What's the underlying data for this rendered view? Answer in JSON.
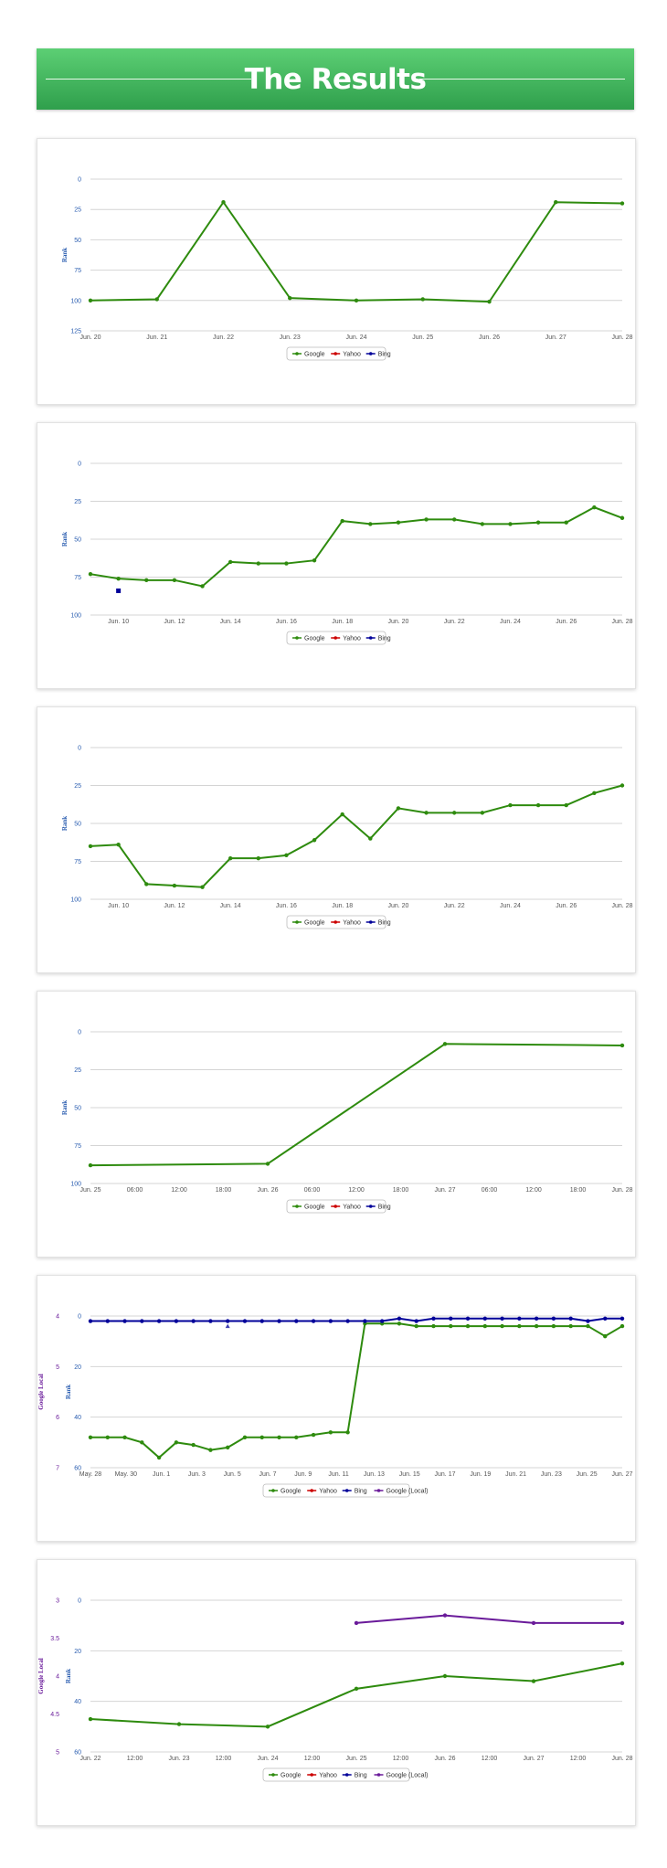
{
  "header": {
    "title": "The Results"
  },
  "colors": {
    "Google": "#2e8b0e",
    "Yahoo": "#cc0000",
    "Bing": "#000099",
    "Google (Local)": "#6a1b9a"
  },
  "chart_data": [
    {
      "type": "line",
      "ylabel": "Rank",
      "ylim": [
        0,
        125
      ],
      "y_reversed": true,
      "yticks": [
        0,
        25,
        50,
        75,
        100,
        125
      ],
      "xticks": [
        "Jun. 20",
        "Jun. 21",
        "Jun. 22",
        "Jun. 23",
        "Jun. 24",
        "Jun. 25",
        "Jun. 26",
        "Jun. 27",
        "Jun. 28"
      ],
      "xrange": [
        0,
        8
      ],
      "series": [
        {
          "name": "Google",
          "x": [
            0,
            1,
            2,
            3,
            4,
            5,
            6,
            7,
            8
          ],
          "y": [
            100,
            99,
            19,
            98,
            100,
            99,
            101,
            19,
            20
          ]
        }
      ],
      "legend": [
        "Google",
        "Yahoo",
        "Bing"
      ],
      "legend_position": "bottom-center"
    },
    {
      "type": "line",
      "ylabel": "Rank",
      "ylim": [
        0,
        100
      ],
      "y_reversed": true,
      "yticks": [
        0,
        25,
        50,
        75,
        100
      ],
      "xticks": [
        "Jun. 10",
        "Jun. 12",
        "Jun. 14",
        "Jun. 16",
        "Jun. 18",
        "Jun. 20",
        "Jun. 22",
        "Jun. 24",
        "Jun. 26",
        "Jun. 28"
      ],
      "xrange": [
        9,
        28
      ],
      "series": [
        {
          "name": "Google",
          "x": [
            9,
            10,
            11,
            12,
            13,
            14,
            15,
            16,
            17,
            18,
            19,
            20,
            21,
            22,
            23,
            24,
            25,
            26,
            27,
            28
          ],
          "y": [
            73,
            76,
            77,
            77,
            81,
            65,
            66,
            66,
            64,
            38,
            40,
            39,
            37,
            37,
            40,
            40,
            39,
            39,
            29,
            36
          ]
        },
        {
          "name": "Bing",
          "x": [
            10
          ],
          "y": [
            84
          ]
        }
      ],
      "legend": [
        "Google",
        "Yahoo",
        "Bing"
      ],
      "legend_position": "bottom-center"
    },
    {
      "type": "line",
      "ylabel": "Rank",
      "ylim": [
        0,
        100
      ],
      "y_reversed": true,
      "yticks": [
        0,
        25,
        50,
        75,
        100
      ],
      "xticks": [
        "Jun. 10",
        "Jun. 12",
        "Jun. 14",
        "Jun. 16",
        "Jun. 18",
        "Jun. 20",
        "Jun. 22",
        "Jun. 24",
        "Jun. 26",
        "Jun. 28"
      ],
      "xrange": [
        9,
        28
      ],
      "series": [
        {
          "name": "Google",
          "x": [
            9,
            10,
            11,
            12,
            13,
            14,
            15,
            16,
            17,
            18,
            19,
            20,
            21,
            22,
            23,
            24,
            25,
            26,
            27,
            28
          ],
          "y": [
            65,
            64,
            90,
            91,
            92,
            73,
            73,
            71,
            61,
            44,
            60,
            40,
            43,
            43,
            43,
            38,
            38,
            38,
            30,
            25
          ]
        }
      ],
      "legend": [
        "Google",
        "Yahoo",
        "Bing"
      ],
      "legend_position": "bottom-center"
    },
    {
      "type": "line",
      "ylabel": "Rank",
      "ylim": [
        0,
        100
      ],
      "y_reversed": true,
      "yticks": [
        0,
        25,
        50,
        75,
        100
      ],
      "xticks": [
        "Jun. 25",
        "06:00",
        "12:00",
        "18:00",
        "Jun. 26",
        "06:00",
        "12:00",
        "18:00",
        "Jun. 27",
        "06:00",
        "12:00",
        "18:00",
        "Jun. 28"
      ],
      "xrange": [
        0,
        12
      ],
      "series": [
        {
          "name": "Google",
          "x": [
            0,
            4,
            8,
            12
          ],
          "y": [
            88,
            87,
            8,
            9
          ]
        }
      ],
      "legend": [
        "Google",
        "Yahoo",
        "Bing"
      ],
      "legend_position": "bottom-center"
    },
    {
      "type": "line",
      "ylabel": "Rank",
      "ylabel2": "Google Local",
      "ylim": [
        0,
        60
      ],
      "y_reversed": true,
      "yticks": [
        0,
        20,
        40,
        60
      ],
      "ylim2": [
        4,
        7
      ],
      "yticks2": [
        4,
        5,
        6,
        7
      ],
      "xticks": [
        "May. 28",
        "May. 30",
        "Jun. 1",
        "Jun. 3",
        "Jun. 5",
        "Jun. 7",
        "Jun. 9",
        "Jun. 11",
        "Jun. 13",
        "Jun. 15",
        "Jun. 17",
        "Jun. 19",
        "Jun. 21",
        "Jun. 23",
        "Jun. 25",
        "Jun. 27"
      ],
      "xrange": [
        0,
        31
      ],
      "series": [
        {
          "name": "Google",
          "x": [
            0,
            1,
            2,
            3,
            4,
            5,
            6,
            7,
            8,
            9,
            10,
            11,
            12,
            13,
            14,
            15,
            16,
            17,
            18,
            19,
            20,
            21,
            22,
            23,
            24,
            25,
            26,
            27,
            28,
            29,
            30,
            31
          ],
          "y": [
            48,
            48,
            48,
            50,
            56,
            50,
            51,
            53,
            52,
            48,
            48,
            48,
            48,
            47,
            46,
            46,
            3,
            3,
            3,
            4,
            4,
            4,
            4,
            4,
            4,
            4,
            4,
            4,
            4,
            4,
            8,
            4
          ]
        },
        {
          "name": "Bing",
          "x": [
            0,
            1,
            2,
            3,
            4,
            5,
            6,
            7,
            8,
            9,
            10,
            11,
            12,
            13,
            14,
            15,
            16,
            17,
            18,
            19,
            20,
            21,
            22,
            23,
            24,
            25,
            26,
            27,
            28,
            29,
            30,
            31
          ],
          "y": [
            2,
            2,
            2,
            2,
            2,
            2,
            2,
            2,
            2,
            2,
            2,
            2,
            2,
            2,
            2,
            2,
            2,
            2,
            1,
            2,
            1,
            1,
            1,
            1,
            1,
            1,
            1,
            1,
            1,
            2,
            1,
            1
          ]
        },
        {
          "name": "Yahoo",
          "x": [
            8
          ],
          "y": [
            4
          ]
        }
      ],
      "legend": [
        "Google",
        "Yahoo",
        "Bing",
        "Google (Local)"
      ],
      "legend_position": "bottom-center"
    },
    {
      "type": "line",
      "ylabel": "Rank",
      "ylabel2": "Google Local",
      "ylim": [
        0,
        60
      ],
      "y_reversed": true,
      "yticks": [
        0,
        20,
        40,
        60
      ],
      "ylim2": [
        3,
        5
      ],
      "yticks2": [
        3,
        3.5,
        4,
        4.5,
        5
      ],
      "xticks": [
        "Jun. 22",
        "12:00",
        "Jun. 23",
        "12:00",
        "Jun. 24",
        "12:00",
        "Jun. 25",
        "12:00",
        "Jun. 26",
        "12:00",
        "Jun. 27",
        "12:00",
        "Jun. 28"
      ],
      "xrange": [
        0,
        12
      ],
      "series": [
        {
          "name": "Google",
          "x": [
            0,
            2,
            4,
            6,
            8,
            10,
            12
          ],
          "y": [
            47,
            49,
            50,
            35,
            30,
            32,
            25
          ]
        },
        {
          "name": "Google (Local)",
          "x": [
            6,
            8,
            10,
            12
          ],
          "y": [
            3.3,
            3.2,
            3.3,
            3.3
          ]
        }
      ],
      "legend": [
        "Google",
        "Yahoo",
        "Bing",
        "Google (Local)"
      ],
      "legend_position": "bottom-center"
    }
  ]
}
